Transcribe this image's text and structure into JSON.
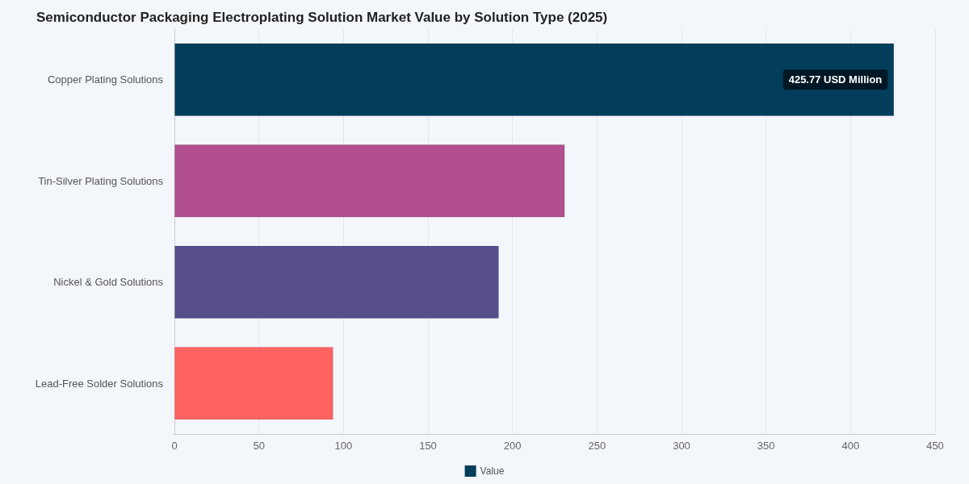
{
  "chart_data": {
    "type": "bar",
    "orientation": "horizontal",
    "title": "Semiconductor Packaging Electroplating Solution Market Value by Solution Type (2025)",
    "categories": [
      "Copper Plating Solutions",
      "Tin-Silver Plating Solutions",
      "Nickel & Gold Solutions",
      "Lead-Free Solder Solutions"
    ],
    "series": [
      {
        "name": "Value",
        "color": "#023e5c",
        "colors": [
          "#023e5c",
          "#b24f8e",
          "#564f8c",
          "#ff6361"
        ],
        "values": [
          425.77,
          231,
          192,
          94
        ],
        "value_labels": [
          "425.77 USD Million",
          null,
          null,
          null
        ]
      }
    ],
    "xlim": [
      0,
      450
    ],
    "xticks": [
      0,
      50,
      100,
      150,
      200,
      250,
      300,
      350,
      400,
      450
    ],
    "grid": "x",
    "legend": "bottom"
  }
}
